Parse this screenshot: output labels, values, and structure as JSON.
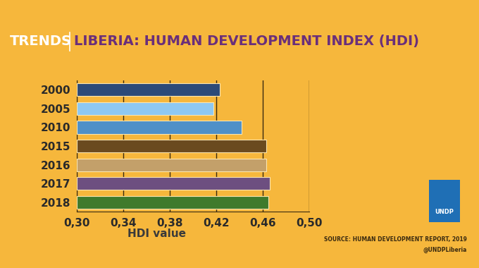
{
  "chart_data": {
    "type": "bar",
    "orientation": "horizontal",
    "title_prefix": "TRENDS",
    "title": "LIBERIA: HUMAN DEVELOPMENT INDEX (HDI)",
    "categories": [
      "2000",
      "2005",
      "2010",
      "2015",
      "2016",
      "2017",
      "2018"
    ],
    "values": [
      0.423,
      0.418,
      0.442,
      0.463,
      0.463,
      0.466,
      0.465
    ],
    "colors": [
      "#2c4a78",
      "#8ec8f2",
      "#4f90c8",
      "#6a4a1f",
      "#c3a06a",
      "#6d4f80",
      "#3f7a2c"
    ],
    "x_label": "HDI value",
    "xlim": [
      0.3,
      0.5
    ],
    "xticks": [
      {
        "value": 0.3,
        "label": "0,30"
      },
      {
        "value": 0.34,
        "label": "0,34"
      },
      {
        "value": 0.38,
        "label": "0,38"
      },
      {
        "value": 0.42,
        "label": "0,42"
      },
      {
        "value": 0.46,
        "label": "0,46"
      },
      {
        "value": 0.5,
        "label": "0,50"
      }
    ],
    "grid": true,
    "source": "SOURCE: HUMAN DEVELOPMENT REPORT, 2019",
    "handle": "@UNDPLiberia",
    "logo_text": "UNDP"
  }
}
